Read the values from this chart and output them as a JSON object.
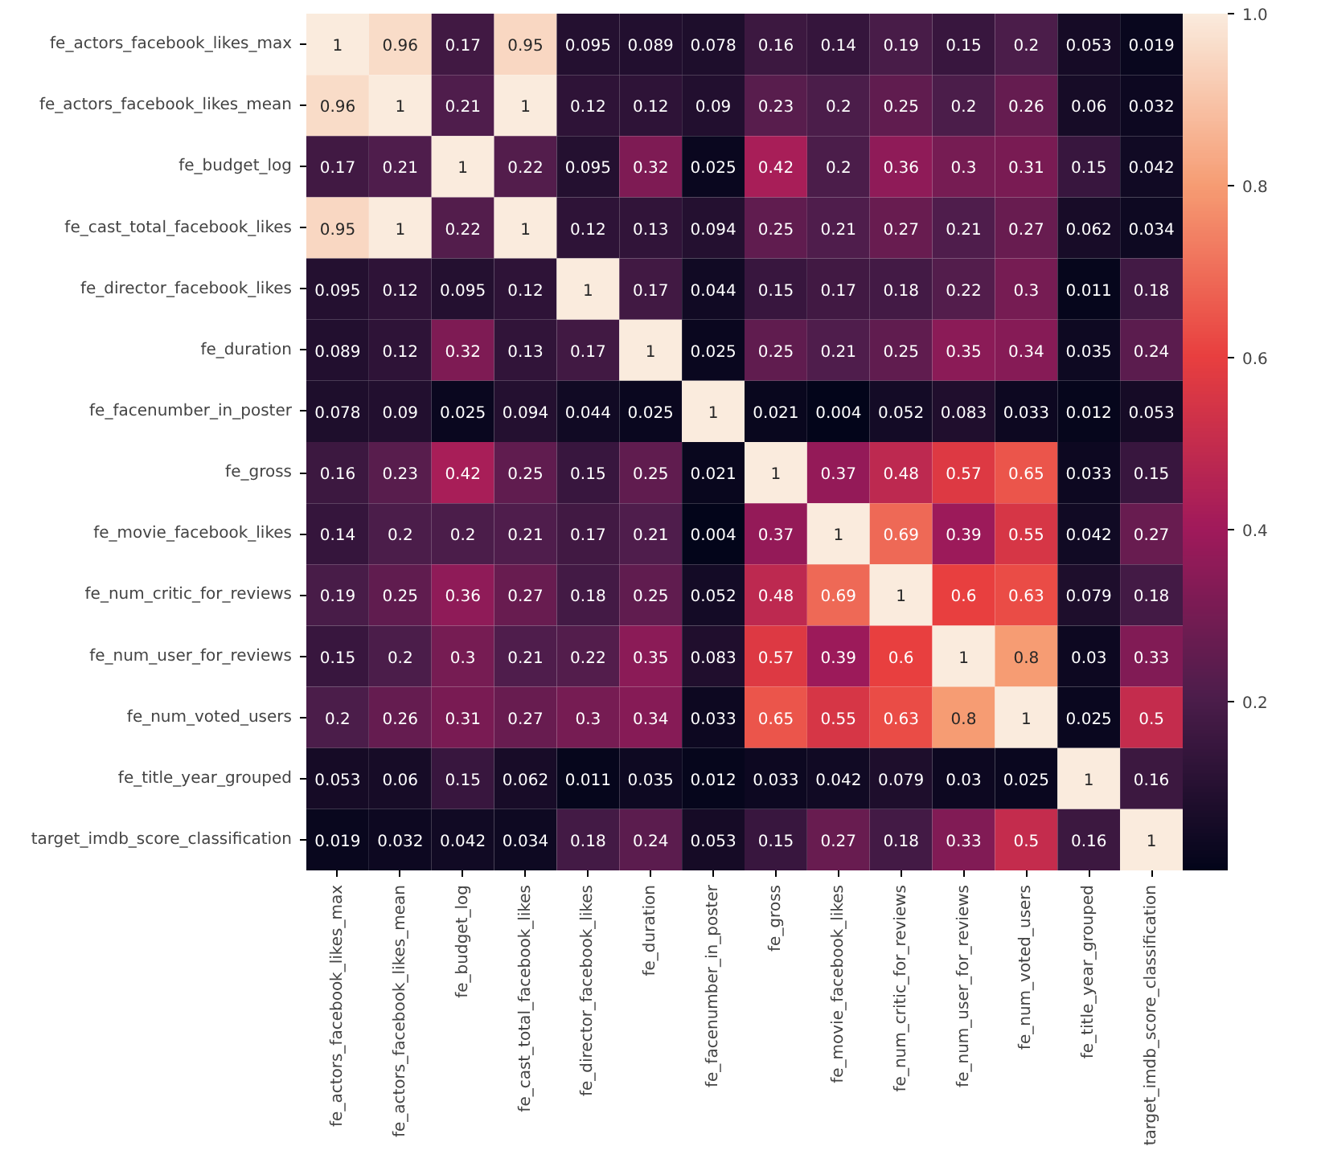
{
  "chart_data": {
    "type": "heatmap",
    "data_labels": true,
    "grid": false,
    "categories": [
      "fe_actors_facebook_likes_max",
      "fe_actors_facebook_likes_mean",
      "fe_budget_log",
      "fe_cast_total_facebook_likes",
      "fe_director_facebook_likes",
      "fe_duration",
      "fe_facenumber_in_poster",
      "fe_gross",
      "fe_movie_facebook_likes",
      "fe_num_critic_for_reviews",
      "fe_num_user_for_reviews",
      "fe_num_voted_users",
      "fe_title_year_grouped",
      "target_imdb_score_classification"
    ],
    "y_categories": [
      "fe_actors_facebook_likes_max",
      "fe_actors_facebook_likes_mean",
      "fe_budget_log",
      "fe_cast_total_facebook_likes",
      "fe_director_facebook_likes",
      "fe_duration",
      "fe_facenumber_in_poster",
      "fe_gross",
      "fe_movie_facebook_likes",
      "fe_num_critic_for_reviews",
      "fe_num_user_for_reviews",
      "fe_num_voted_users",
      "fe_title_year_grouped",
      "target_imdb_score_classification"
    ],
    "cells": [
      [
        1,
        0.96,
        0.17,
        0.95,
        0.095,
        0.089,
        0.078,
        0.16,
        0.14,
        0.19,
        0.15,
        0.2,
        0.053,
        0.019
      ],
      [
        0.96,
        1,
        0.21,
        1,
        0.12,
        0.12,
        0.09,
        0.23,
        0.2,
        0.25,
        0.2,
        0.26,
        0.06,
        0.032
      ],
      [
        0.17,
        0.21,
        1,
        0.22,
        0.095,
        0.32,
        0.025,
        0.42,
        0.2,
        0.36,
        0.3,
        0.31,
        0.15,
        0.042
      ],
      [
        0.95,
        1,
        0.22,
        1,
        0.12,
        0.13,
        0.094,
        0.25,
        0.21,
        0.27,
        0.21,
        0.27,
        0.062,
        0.034
      ],
      [
        0.095,
        0.12,
        0.095,
        0.12,
        1,
        0.17,
        0.044,
        0.15,
        0.17,
        0.18,
        0.22,
        0.3,
        0.011,
        0.18
      ],
      [
        0.089,
        0.12,
        0.32,
        0.13,
        0.17,
        1,
        0.025,
        0.25,
        0.21,
        0.25,
        0.35,
        0.34,
        0.035,
        0.24
      ],
      [
        0.078,
        0.09,
        0.025,
        0.094,
        0.044,
        0.025,
        1,
        0.021,
        0.004,
        0.052,
        0.083,
        0.033,
        0.012,
        0.053
      ],
      [
        0.16,
        0.23,
        0.42,
        0.25,
        0.15,
        0.25,
        0.021,
        1,
        0.37,
        0.48,
        0.57,
        0.65,
        0.033,
        0.15
      ],
      [
        0.14,
        0.2,
        0.2,
        0.21,
        0.17,
        0.21,
        0.004,
        0.37,
        1,
        0.69,
        0.39,
        0.55,
        0.042,
        0.27
      ],
      [
        0.19,
        0.25,
        0.36,
        0.27,
        0.18,
        0.25,
        0.052,
        0.48,
        0.69,
        1,
        0.6,
        0.63,
        0.079,
        0.18
      ],
      [
        0.15,
        0.2,
        0.3,
        0.21,
        0.22,
        0.35,
        0.083,
        0.57,
        0.39,
        0.6,
        1,
        0.8,
        0.03,
        0.33
      ],
      [
        0.2,
        0.26,
        0.31,
        0.27,
        0.3,
        0.34,
        0.033,
        0.65,
        0.55,
        0.63,
        0.8,
        1,
        0.025,
        0.5
      ],
      [
        0.053,
        0.06,
        0.15,
        0.062,
        0.011,
        0.035,
        0.012,
        0.033,
        0.042,
        0.079,
        0.03,
        0.025,
        1,
        0.16
      ],
      [
        0.019,
        0.032,
        0.042,
        0.034,
        0.18,
        0.24,
        0.053,
        0.15,
        0.27,
        0.18,
        0.33,
        0.5,
        0.16,
        1
      ]
    ],
    "clim": [
      0.004,
      1
    ],
    "cticks": [
      0.2,
      0.4,
      0.6,
      0.8,
      {
        "value": 1,
        "label": "1.0"
      }
    ]
  }
}
